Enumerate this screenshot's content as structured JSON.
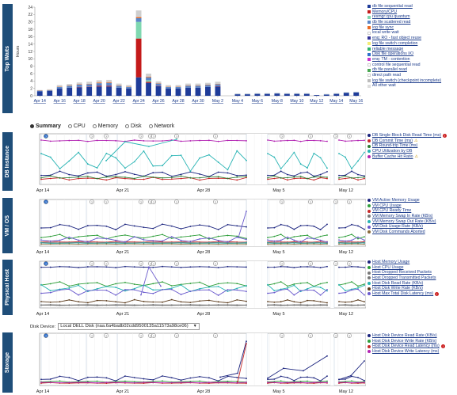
{
  "sections": {
    "top_waits": "Top Waits",
    "db_instance": "DB Instance",
    "vm_os": "VM / OS",
    "physical_host": "Physical Host",
    "storage": "Storage"
  },
  "tabs": [
    {
      "label": "Summary",
      "selected": true
    },
    {
      "label": "CPU",
      "selected": false
    },
    {
      "label": "Memory",
      "selected": false
    },
    {
      "label": "Disk",
      "selected": false
    },
    {
      "label": "Network",
      "selected": false
    }
  ],
  "disk_device": {
    "label": "Disk Device:",
    "value": "Local DELL Disk (naa.6a4badb02cdd9500135a11573a98ce06)",
    "arrow": "▼"
  },
  "time_axis_labels": [
    "Apr 14",
    "Apr 21",
    "Apr 28",
    "May 5",
    "May 12"
  ],
  "icon_glyph": "?",
  "legends": {
    "top_waits": [
      {
        "label": "db file sequential read",
        "color": "#1f3c99",
        "link": true
      },
      {
        "label": "Memory/CPU",
        "color": "#c41a1a",
        "link": true
      },
      {
        "label": "resmgr:cpu quantum",
        "color": "#7fd8b0",
        "link": true
      },
      {
        "label": "db file scattered read",
        "color": "#5b86c7",
        "link": true
      },
      {
        "label": "log file sync",
        "color": "#ec6c24",
        "link": true
      },
      {
        "label": "local write wait",
        "color": "#ffffff",
        "link": false
      },
      {
        "label": "enq: RO - fast object reuse",
        "color": "#333399",
        "link": true
      },
      {
        "label": "log file switch completion",
        "color": "#f4ed76",
        "link": true
      },
      {
        "label": "reliable message",
        "color": "#2db36b",
        "link": true
      },
      {
        "label": "Disk file operations I/O",
        "color": "#2e6fcc",
        "link": true
      },
      {
        "label": "enq: TM - contention",
        "color": "#cc33cc",
        "link": true
      },
      {
        "label": "control file sequential read",
        "color": "#ffffff",
        "link": false
      },
      {
        "label": "db file parallel read",
        "color": "#4aa852",
        "link": true
      },
      {
        "label": "direct path read",
        "color": "#ffffff",
        "link": false
      },
      {
        "label": "log file switch (checkpoint incomplete)",
        "color": "#bbbbbb",
        "link": true
      },
      {
        "label": "All other wait",
        "color": "#dddddd",
        "link": false
      }
    ],
    "db_instance": [
      {
        "label": "DB Single Block Disk Read Time (ms)",
        "color": "#1a237e",
        "badge": "err"
      },
      {
        "label": "DB Commit Time (ms)",
        "color": "#c62828",
        "badge": "warn"
      },
      {
        "label": "DB Round-trip Time (ms)",
        "color": "#2e7d32",
        "badge": ""
      },
      {
        "label": "CPU Utilization by DB",
        "color": "#26b3b3",
        "badge": ""
      },
      {
        "label": "Buffer Cache Hit Ratio",
        "color": "#b324b3",
        "badge": "warn"
      }
    ],
    "vm_os": [
      {
        "label": "VM Active Memory Usage",
        "color": "#1a237e",
        "badge": ""
      },
      {
        "label": "VM CPU Usage",
        "color": "#2e9e3a",
        "badge": ""
      },
      {
        "label": "VM CPU Ready Time",
        "color": "#c62828",
        "badge": ""
      },
      {
        "label": "VM Memory Swap In Rate (KB/s)",
        "color": "#777777",
        "badge": ""
      },
      {
        "label": "VM Memory Swap Out Rate (KB/s)",
        "color": "#26b3b3",
        "badge": ""
      },
      {
        "label": "VM Disk Usage Rate (KB/s)",
        "color": "#6a5acd",
        "badge": ""
      },
      {
        "label": "VM Disk Commands Aborted",
        "color": "#8a6a3a",
        "badge": ""
      }
    ],
    "physical_host": [
      {
        "label": "Host Memory Usage",
        "color": "#1a237e",
        "badge": ""
      },
      {
        "label": "Host CPU Usage",
        "color": "#2e9e3a",
        "badge": ""
      },
      {
        "label": "Host Dropped Received Packets",
        "color": "#777777",
        "badge": ""
      },
      {
        "label": "Host Dropped Transmitted Packets",
        "color": "#777777",
        "badge": ""
      },
      {
        "label": "Host Disk Read Rate (KB/s)",
        "color": "#26b3b3",
        "badge": ""
      },
      {
        "label": "Host Disk Write Rate (KB/s)",
        "color": "#5b3a1a",
        "badge": ""
      },
      {
        "label": "Host Max Total Disk Latency (ms)",
        "color": "#6a5acd",
        "badge": "err"
      }
    ],
    "storage": [
      {
        "label": "Host Disk Device Read Rate (KB/s)",
        "color": "#1a237e",
        "badge": ""
      },
      {
        "label": "Host Disk Device Write Rate (KB/s)",
        "color": "#2e9e3a",
        "badge": ""
      },
      {
        "label": "Host Disk Device Read Latency (ms)",
        "color": "#c62828",
        "badge": "err"
      },
      {
        "label": "Host Disk Device Write Latency (ms)",
        "color": "#b324b3",
        "badge": ""
      }
    ]
  },
  "chart_data": [
    {
      "type": "bar",
      "ylabel": "Hours",
      "ylim": [
        0,
        24
      ],
      "yticks": [
        0,
        2,
        4,
        6,
        8,
        10,
        12,
        14,
        16,
        18,
        20,
        22,
        24
      ],
      "categories": [
        "Apr 14",
        "Apr 15",
        "Apr 16",
        "Apr 17",
        "Apr 18",
        "Apr 19",
        "Apr 20",
        "Apr 21",
        "Apr 22",
        "Apr 23",
        "Apr 24",
        "Apr 25",
        "Apr 26",
        "Apr 27",
        "Apr 28",
        "Apr 29",
        "Apr 30",
        "May 1",
        "May 2",
        "May 3",
        "May 4",
        "May 5",
        "May 6",
        "May 7",
        "May 8",
        "May 9",
        "May 10",
        "May 11",
        "May 12",
        "May 13",
        "May 14",
        "May 15",
        "May 16"
      ],
      "xtick_labels": [
        "Apr 14",
        "Apr 16",
        "Apr 18",
        "Apr 20",
        "Apr 22",
        "Apr 24",
        "Apr 26",
        "Apr 28",
        "Apr 30",
        "May 2",
        "May 4",
        "May 6",
        "May 8",
        "May 10",
        "May 12",
        "May 14",
        "May 16"
      ],
      "series": [
        {
          "name": "db file sequential read",
          "values": [
            1.2,
            1.3,
            2.0,
            2.2,
            2.3,
            2.4,
            2.5,
            2.5,
            2.2,
            2.0,
            5.0,
            3.5,
            2.6,
            2.0,
            2.0,
            2.2,
            2.2,
            2.4,
            2.5,
            0,
            0.4,
            0.4,
            0.5,
            0.5,
            0.6,
            0.5,
            0.5,
            0.5,
            0.2,
            0.3,
            0.5,
            0.8,
            0.9
          ]
        },
        {
          "name": "Memory/CPU",
          "values": [
            0,
            0,
            0,
            0,
            0.1,
            0.1,
            0.2,
            0.2,
            0,
            0,
            10.5,
            0.3,
            0.1,
            0,
            0,
            0,
            0,
            0,
            0.1,
            0,
            0,
            0,
            0,
            0,
            0,
            0,
            0,
            0,
            0,
            0,
            0,
            0,
            0
          ]
        },
        {
          "name": "resmgr:cpu quantum",
          "values": [
            0,
            0,
            0,
            0,
            0,
            0,
            0,
            0,
            0,
            0,
            4.5,
            0.4,
            0,
            0,
            0,
            0,
            0,
            0,
            0,
            0,
            0,
            0,
            0,
            0,
            0,
            0,
            0,
            0,
            0,
            0,
            0,
            0,
            0
          ]
        },
        {
          "name": "db file scattered read",
          "values": [
            0.2,
            0.2,
            0.4,
            0.5,
            0.6,
            0.6,
            0.7,
            0.8,
            0.5,
            0.4,
            1.0,
            0.8,
            0.6,
            0.4,
            0.4,
            0.5,
            0.5,
            0.5,
            0.5,
            0,
            0.1,
            0.1,
            0.1,
            0.1,
            0.1,
            0.1,
            0.1,
            0.1,
            0,
            0.1,
            0.1,
            0.1,
            0.1
          ]
        },
        {
          "name": "log file sync",
          "values": [
            0.05,
            0.05,
            0.1,
            0.1,
            0.1,
            0.1,
            0.2,
            0.2,
            0.1,
            0.1,
            0.3,
            0.2,
            0.1,
            0.1,
            0.1,
            0.1,
            0.1,
            0.1,
            0.1,
            0,
            0,
            0,
            0,
            0,
            0,
            0,
            0,
            0,
            0,
            0,
            0,
            0,
            0
          ]
        },
        {
          "name": "All other wait",
          "values": [
            0.1,
            0.2,
            0.4,
            0.4,
            0.5,
            0.6,
            0.6,
            0.6,
            0.5,
            0.4,
            1.8,
            0.8,
            0.5,
            0.4,
            0.4,
            0.5,
            0.5,
            0.5,
            0.6,
            0,
            0.1,
            0.1,
            0.1,
            0.1,
            0.1,
            0.1,
            0.1,
            0.1,
            0,
            0.1,
            0.1,
            0.1,
            0.1
          ]
        }
      ]
    }
  ]
}
